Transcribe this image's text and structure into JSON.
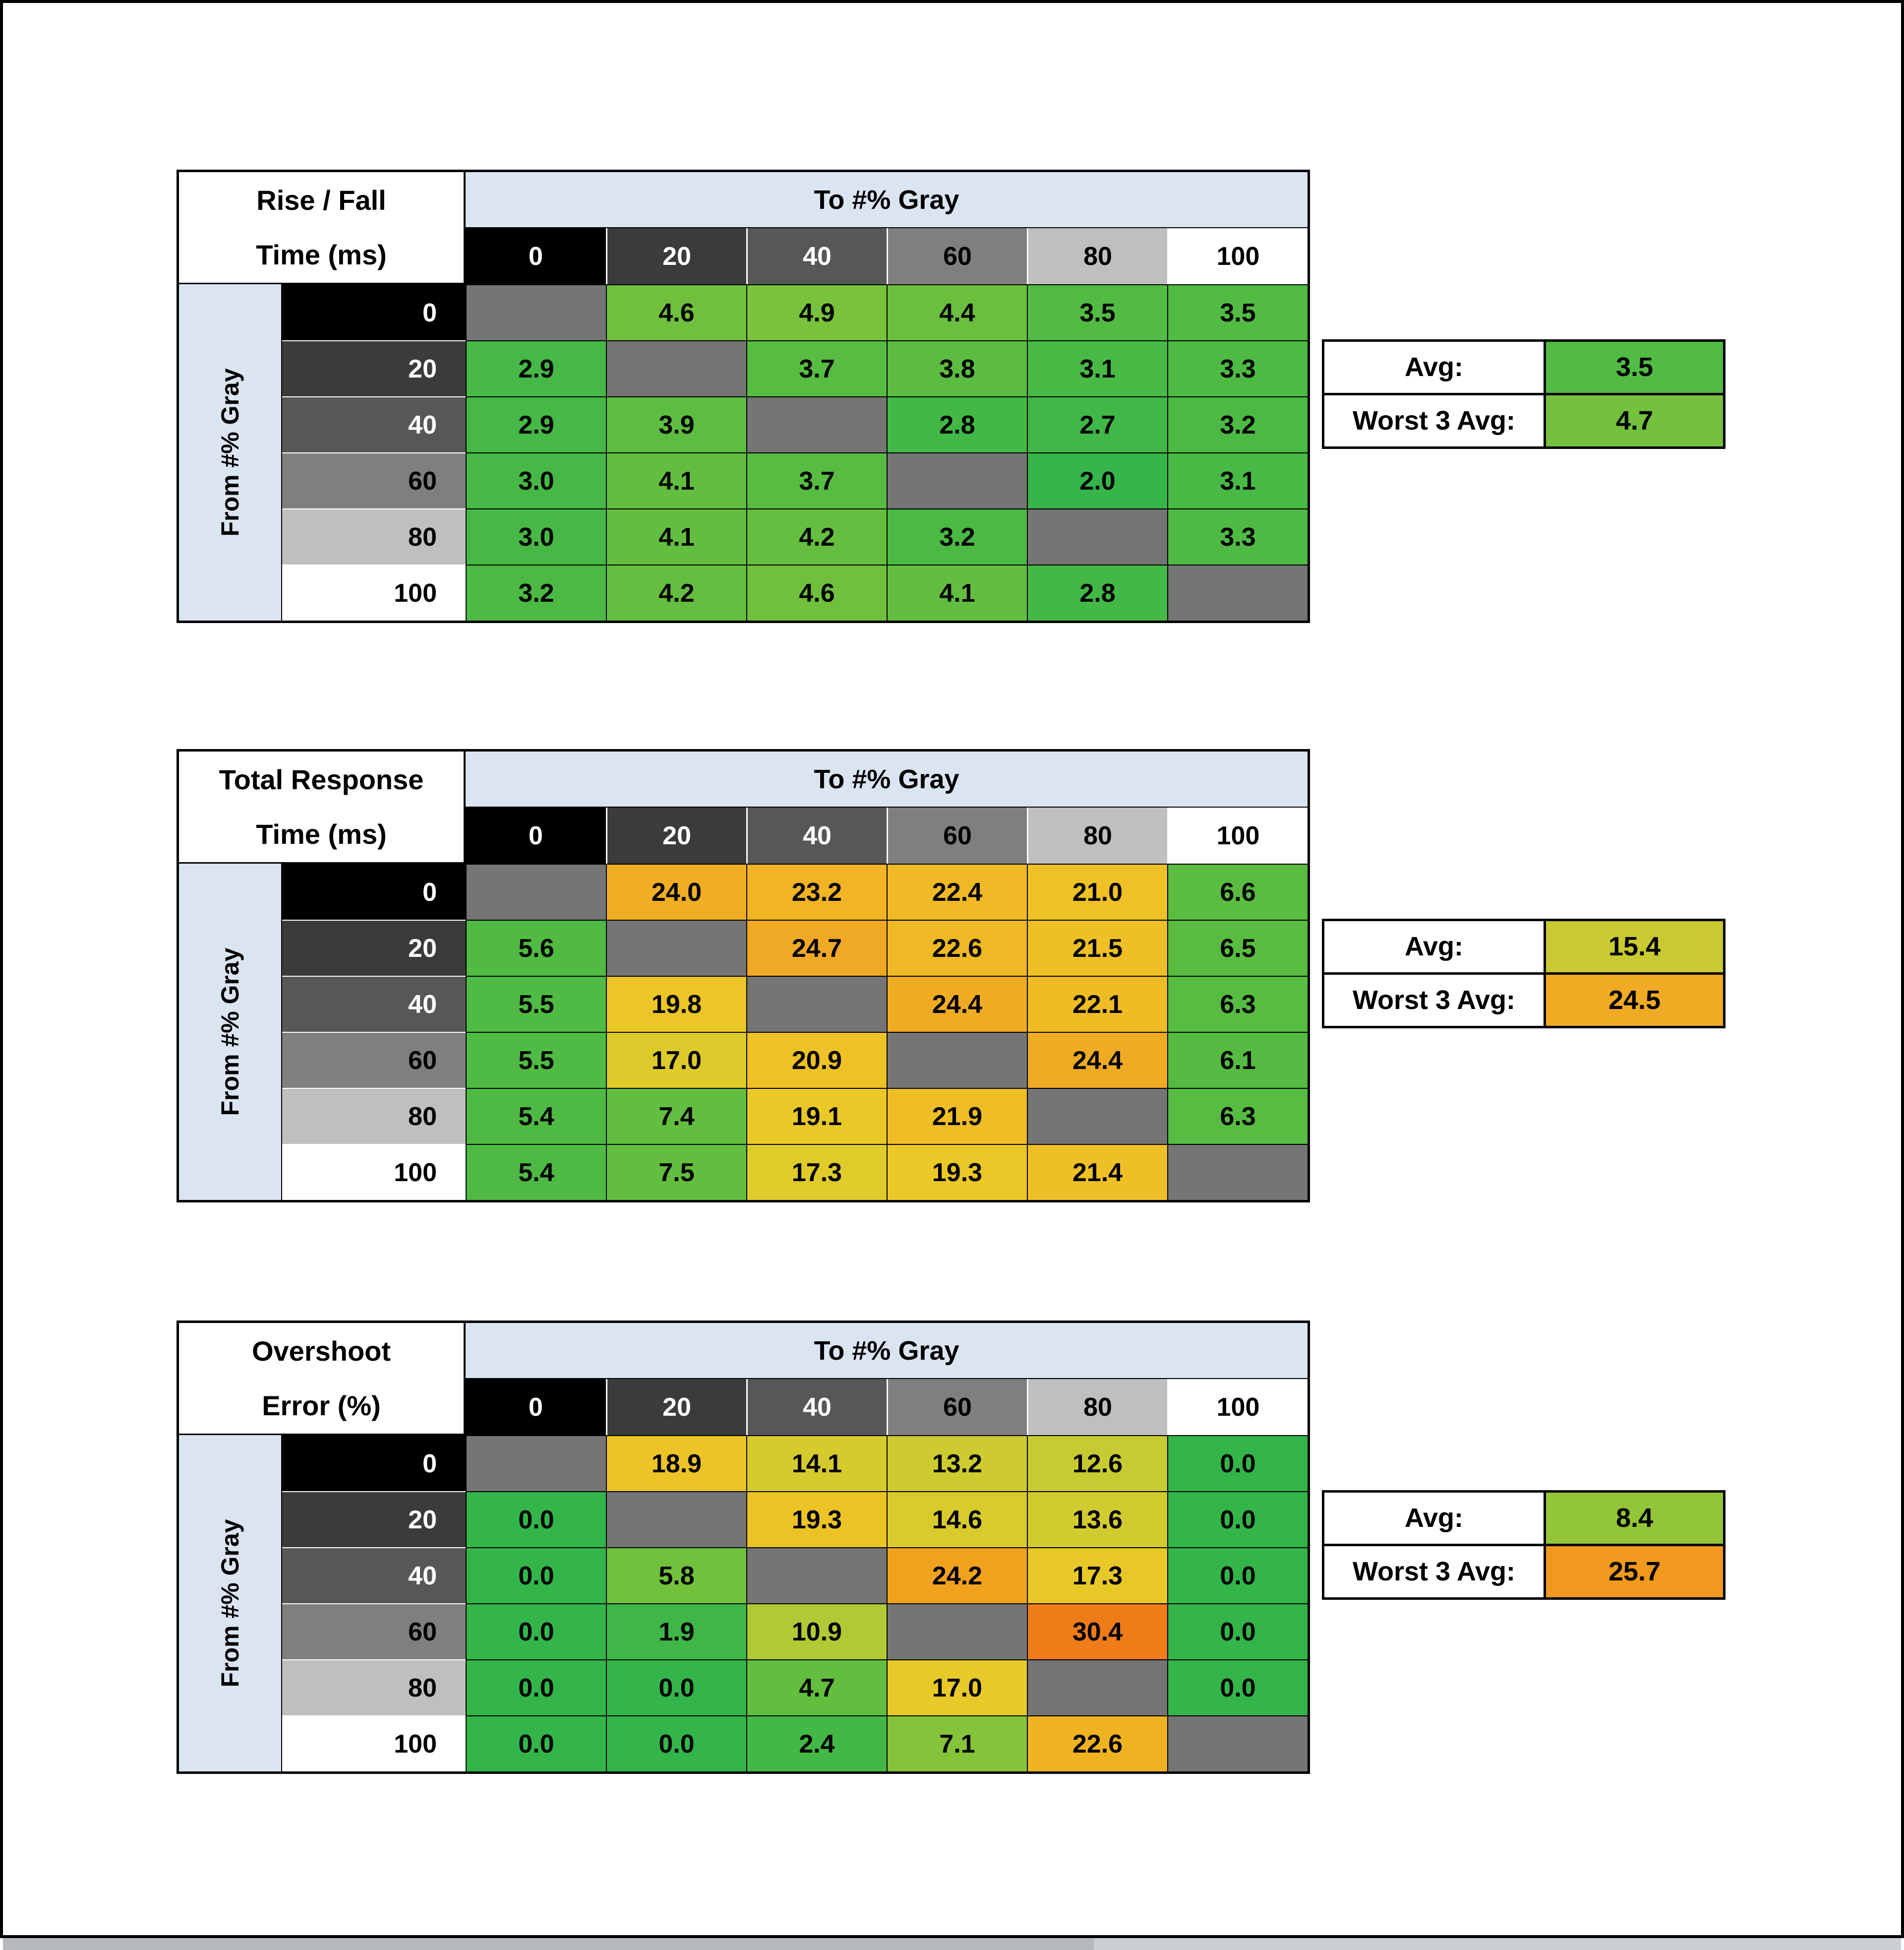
{
  "shared": {
    "colors": {
      "page_bg": "#ffffff",
      "frame_border": "#000000",
      "header_band": "#dbe5f1",
      "diagonal_cell": "#757575",
      "scrollbar_track": "#cbcfd3",
      "scrollbar_thumb": "#b4b9be"
    },
    "gray_levels": [
      {
        "label": "0",
        "bg": "#000000",
        "fg": "#ffffff"
      },
      {
        "label": "20",
        "bg": "#3b3b3b",
        "fg": "#ffffff"
      },
      {
        "label": "40",
        "bg": "#575757",
        "fg": "#ffffff"
      },
      {
        "label": "60",
        "bg": "#7f7f7f",
        "fg": "#000000"
      },
      {
        "label": "80",
        "bg": "#bfbfbf",
        "fg": "#000000"
      },
      {
        "label": "100",
        "bg": "#ffffff",
        "fg": "#000000"
      }
    ]
  },
  "chart_data": [
    {
      "type": "heatmap",
      "id": "rise-fall-time",
      "title": "Rise / Fall Time (ms)",
      "title_lines": [
        "Rise / Fall",
        "Time (ms)"
      ],
      "xlabel": "To #% Gray",
      "ylabel": "From #% Gray",
      "x_categories": [
        "0",
        "20",
        "40",
        "60",
        "80",
        "100"
      ],
      "y_categories": [
        "0",
        "20",
        "40",
        "60",
        "80",
        "100"
      ],
      "values": [
        [
          null,
          4.6,
          4.9,
          4.4,
          3.5,
          3.5
        ],
        [
          2.9,
          null,
          3.7,
          3.8,
          3.1,
          3.3
        ],
        [
          2.9,
          3.9,
          null,
          2.8,
          2.7,
          3.2
        ],
        [
          3.0,
          4.1,
          3.7,
          null,
          2.0,
          3.1
        ],
        [
          3.0,
          4.1,
          4.2,
          3.2,
          null,
          3.3
        ],
        [
          3.2,
          4.2,
          4.6,
          4.1,
          2.8,
          null
        ]
      ],
      "cell_colors": [
        [
          null,
          "#70c03e",
          "#78c23c",
          "#6bbf3e",
          "#52bb43",
          "#52bb43"
        ],
        [
          "#45b846",
          null,
          "#58bc42",
          "#5bbc41",
          "#49b945",
          "#4eba44"
        ],
        [
          "#45b846",
          "#5dbd41",
          null,
          "#43b846",
          "#41b747",
          "#4bb944"
        ],
        [
          "#47b845",
          "#63be40",
          "#58bc42",
          null,
          "#35b54a",
          "#49b945"
        ],
        [
          "#47b845",
          "#63be40",
          "#65be3f",
          "#4bb944",
          null,
          "#4eba44"
        ],
        [
          "#4bb944",
          "#65be3f",
          "#70c03e",
          "#63be40",
          "#43b846",
          null
        ]
      ],
      "summary": {
        "avg_label": "Avg:",
        "avg_value": 3.5,
        "avg_color": "#52bb43",
        "worst_label": "Worst 3 Avg:",
        "worst_value": 4.7,
        "worst_color": "#73c13d"
      }
    },
    {
      "type": "heatmap",
      "id": "total-response-time",
      "title": "Total Response Time (ms)",
      "title_lines": [
        "Total Response",
        "Time (ms)"
      ],
      "xlabel": "To #% Gray",
      "ylabel": "From #% Gray",
      "x_categories": [
        "0",
        "20",
        "40",
        "60",
        "80",
        "100"
      ],
      "y_categories": [
        "0",
        "20",
        "40",
        "60",
        "80",
        "100"
      ],
      "values": [
        [
          null,
          24.0,
          23.2,
          22.4,
          21.0,
          6.6
        ],
        [
          5.6,
          null,
          24.7,
          22.6,
          21.5,
          6.5
        ],
        [
          5.5,
          19.8,
          null,
          24.4,
          22.1,
          6.3
        ],
        [
          5.5,
          17.0,
          20.9,
          null,
          24.4,
          6.1
        ],
        [
          5.4,
          7.4,
          19.1,
          21.9,
          null,
          6.3
        ],
        [
          5.4,
          7.5,
          17.3,
          19.3,
          21.4,
          null
        ]
      ],
      "cell_colors": [
        [
          null,
          "#f0ae24",
          "#f0b425",
          "#efba25",
          "#eec127",
          "#5abc41"
        ],
        [
          "#50ba43",
          null,
          "#f0a924",
          "#efb925",
          "#eebf26",
          "#59bc41"
        ],
        [
          "#4fba44",
          "#ecc627",
          null,
          "#f0ab24",
          "#efbc26",
          "#57bc42"
        ],
        [
          "#4fba44",
          "#ddcb2b",
          "#eec227",
          null,
          "#f0ab24",
          "#55bb42"
        ],
        [
          "#4eba44",
          "#62be40",
          "#eac828",
          "#efbd26",
          null,
          "#57bc42"
        ],
        [
          "#4eba44",
          "#63be40",
          "#dfcb2a",
          "#ebc828",
          "#eebf26",
          null
        ]
      ],
      "summary": {
        "avg_label": "Avg:",
        "avg_value": 15.4,
        "avg_color": "#c9ca31",
        "worst_label": "Worst 3 Avg:",
        "worst_value": 24.5,
        "worst_color": "#f0aa24"
      }
    },
    {
      "type": "heatmap",
      "id": "overshoot-error",
      "title": "Overshoot Error (%)",
      "title_lines": [
        "Overshoot",
        "Error (%)"
      ],
      "xlabel": "To #% Gray",
      "ylabel": "From #% Gray",
      "x_categories": [
        "0",
        "20",
        "40",
        "60",
        "80",
        "100"
      ],
      "y_categories": [
        "0",
        "20",
        "40",
        "60",
        "80",
        "100"
      ],
      "values": [
        [
          null,
          18.9,
          14.1,
          13.2,
          12.6,
          0.0
        ],
        [
          0.0,
          null,
          19.3,
          14.6,
          13.6,
          0.0
        ],
        [
          0.0,
          5.8,
          null,
          24.2,
          17.3,
          0.0
        ],
        [
          0.0,
          1.9,
          10.9,
          null,
          30.4,
          0.0
        ],
        [
          0.0,
          0.0,
          4.7,
          17.0,
          null,
          0.0
        ],
        [
          0.0,
          0.0,
          2.4,
          7.1,
          22.6,
          null
        ]
      ],
      "cell_colors": [
        [
          null,
          "#ecc427",
          "#d6cb2e",
          "#cecb30",
          "#c8ca31",
          "#33b54a"
        ],
        [
          "#33b54a",
          null,
          "#ecc327",
          "#dacb2d",
          "#d2cb2f",
          "#33b54a"
        ],
        [
          "#33b54a",
          "#72c13d",
          null,
          "#f0a21f",
          "#e8c829",
          "#33b54a"
        ],
        [
          "#33b54a",
          "#3eb748",
          "#b1c934",
          null,
          "#ed7c19",
          "#33b54a"
        ],
        [
          "#33b54a",
          "#33b54a",
          "#63be40",
          "#e7c929",
          null,
          "#33b54a"
        ],
        [
          "#33b54a",
          "#33b54a",
          "#44b846",
          "#85c33a",
          "#efb322",
          null
        ]
      ],
      "summary": {
        "avg_label": "Avg:",
        "avg_value": 8.4,
        "avg_color": "#93c538",
        "worst_label": "Worst 3 Avg:",
        "worst_value": 25.7,
        "worst_color": "#f0991e"
      }
    }
  ]
}
